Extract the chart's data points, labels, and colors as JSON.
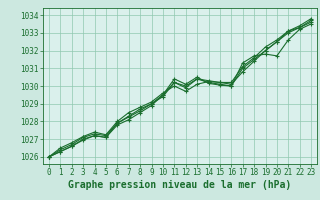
{
  "title": "Graphe pression niveau de la mer (hPa)",
  "bg_color": "#cce8e0",
  "plot_bg_color": "#daf0ec",
  "grid_color": "#90c8b0",
  "line_color": "#1a6e2e",
  "xlim": [
    -0.5,
    23.5
  ],
  "ylim": [
    1025.6,
    1034.4
  ],
  "yticks": [
    1026,
    1027,
    1028,
    1029,
    1030,
    1031,
    1032,
    1033,
    1034
  ],
  "xticks": [
    0,
    1,
    2,
    3,
    4,
    5,
    6,
    7,
    8,
    9,
    10,
    11,
    12,
    13,
    14,
    15,
    16,
    17,
    18,
    19,
    20,
    21,
    22,
    23
  ],
  "series1": [
    1026.0,
    1026.3,
    1026.6,
    1027.0,
    1027.2,
    1027.1,
    1027.8,
    1028.1,
    1028.5,
    1028.9,
    1029.5,
    1030.2,
    1029.9,
    1030.4,
    1030.2,
    1030.1,
    1030.0,
    1031.0,
    1031.5,
    1032.0,
    1032.5,
    1033.0,
    1033.3,
    1033.7
  ],
  "series2": [
    1026.0,
    1026.4,
    1026.7,
    1027.1,
    1027.3,
    1027.2,
    1027.9,
    1028.3,
    1028.7,
    1029.0,
    1029.4,
    1030.2,
    1030.0,
    1030.4,
    1030.3,
    1030.2,
    1030.1,
    1030.8,
    1031.4,
    1032.0,
    1032.5,
    1033.1,
    1033.3,
    1033.6
  ],
  "series3": [
    1026.0,
    1026.5,
    1026.8,
    1027.15,
    1027.4,
    1027.25,
    1028.0,
    1028.5,
    1028.8,
    1029.1,
    1029.6,
    1030.0,
    1029.7,
    1030.1,
    1030.25,
    1030.2,
    1030.2,
    1031.1,
    1031.6,
    1032.2,
    1032.6,
    1033.1,
    1033.4,
    1033.8
  ],
  "series4": [
    1026.0,
    1026.3,
    1026.6,
    1026.95,
    1027.2,
    1027.1,
    1027.9,
    1028.25,
    1028.6,
    1029.0,
    1029.5,
    1030.4,
    1030.1,
    1030.5,
    1030.15,
    1030.05,
    1030.0,
    1031.3,
    1031.7,
    1031.8,
    1031.7,
    1032.6,
    1033.2,
    1033.5
  ],
  "marker": "+",
  "marker_size": 3.5,
  "linewidth": 0.8,
  "title_fontsize": 7,
  "tick_fontsize": 5.5,
  "title_color": "#1a6e2e",
  "tick_color": "#1a6e2e",
  "axis_color": "#1a6e2e"
}
